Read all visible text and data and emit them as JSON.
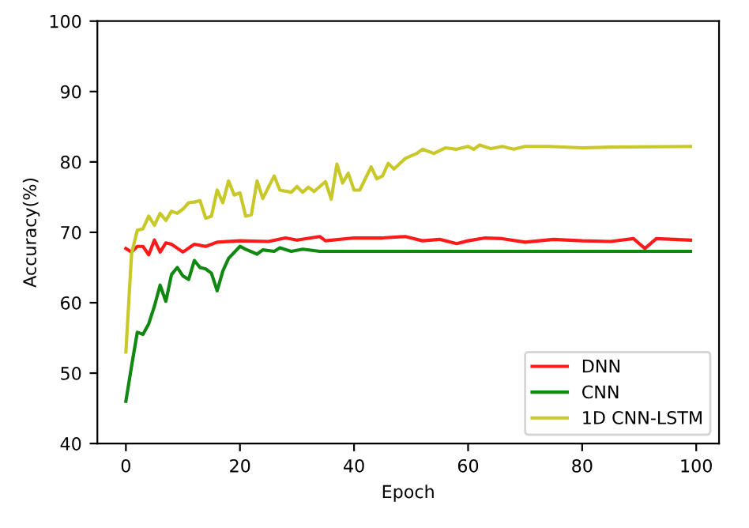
{
  "chart_data": {
    "type": "line",
    "xlabel": "Epoch",
    "ylabel": "Accuracy(%)",
    "xlim": [
      -5,
      104
    ],
    "xticks": [
      0,
      20,
      40,
      60,
      80,
      100
    ],
    "ylim": [
      40,
      100
    ],
    "yticks": [
      40,
      50,
      60,
      70,
      80,
      90,
      100
    ],
    "grid": false,
    "legend": "bottom right",
    "series": [
      {
        "name": "DNN",
        "color": "#ff1a1a",
        "x": [
          0,
          1,
          2,
          3,
          4,
          5,
          6,
          7,
          8,
          10,
          12,
          14,
          16,
          20,
          25,
          28,
          30,
          34,
          35,
          40,
          45,
          49,
          52,
          55,
          58,
          60,
          63,
          66,
          70,
          75,
          80,
          85,
          89,
          91,
          93,
          99
        ],
        "values": [
          67.7,
          67.2,
          68,
          68,
          66.8,
          68.9,
          67.2,
          68.5,
          68.3,
          67.2,
          68.3,
          68,
          68.6,
          68.8,
          68.7,
          69.2,
          68.9,
          69.4,
          68.8,
          69.2,
          69.2,
          69.4,
          68.8,
          69,
          68.4,
          68.8,
          69.2,
          69.1,
          68.6,
          69,
          68.8,
          68.7,
          69.1,
          67.7,
          69.1,
          68.9
        ]
      },
      {
        "name": "CNN",
        "color": "#118811",
        "x": [
          0,
          1,
          2,
          3,
          4,
          5,
          6,
          7,
          8,
          9,
          10,
          11,
          12,
          13,
          14,
          15,
          16,
          17,
          18,
          20,
          21,
          23,
          24,
          26,
          27,
          29,
          31,
          34,
          40,
          99
        ],
        "values": [
          46,
          51,
          55.8,
          55.5,
          57,
          59.5,
          62.5,
          60.2,
          64,
          65,
          63.8,
          63.3,
          66,
          65,
          64.8,
          64.2,
          61.7,
          64.5,
          66.3,
          68,
          67.6,
          66.9,
          67.5,
          67.3,
          67.8,
          67.3,
          67.6,
          67.3,
          67.3,
          67.3
        ]
      },
      {
        "name": "1D CNN-LSTM",
        "color": "#c8c828",
        "x": [
          0,
          1,
          2,
          3,
          4,
          5,
          6,
          7,
          8,
          9,
          10,
          11,
          12,
          13,
          14,
          15,
          16,
          17,
          18,
          19,
          20,
          21,
          22,
          23,
          24,
          26,
          27,
          29,
          30,
          31,
          32,
          33,
          35,
          36,
          37,
          38,
          39,
          40,
          41,
          43,
          44,
          45,
          46,
          47,
          49,
          51,
          52,
          54,
          56,
          58,
          60,
          61,
          62,
          64,
          66,
          68,
          70,
          74,
          80,
          85,
          99
        ],
        "values": [
          53,
          67,
          70.3,
          70.5,
          72.3,
          71,
          72.7,
          71.7,
          73,
          72.7,
          73.3,
          74.2,
          74.3,
          74.5,
          72,
          72.3,
          76,
          74.2,
          77.3,
          75.3,
          75.6,
          72.3,
          72.5,
          77.3,
          74.8,
          78,
          76,
          75.7,
          76.5,
          75.7,
          76.4,
          75.8,
          77.2,
          74.7,
          79.7,
          77,
          78.4,
          76,
          76,
          79.3,
          77.6,
          78,
          79.8,
          79,
          80.5,
          81.2,
          81.8,
          81.2,
          82,
          81.8,
          82.2,
          81.8,
          82.4,
          81.9,
          82.2,
          81.8,
          82.2,
          82.2,
          82,
          82.1,
          82.2
        ]
      }
    ]
  }
}
